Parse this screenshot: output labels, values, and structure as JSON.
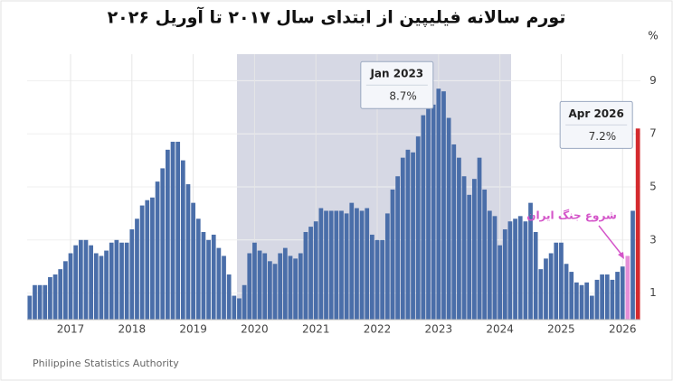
{
  "chart_data": {
    "type": "bar",
    "title": "تورم سالانه فیلیپین از ابتدای سال ۲۰۱۷ تا آوریل ۲۰۲۶",
    "y_label": "%",
    "source": "Philippine Statistics Authority",
    "annotation": "شروع جنگ ایران",
    "color": "#4a6ea9",
    "categories": [
      null,
      null,
      null,
      null,
      null,
      null,
      null,
      null,
      "2017",
      null,
      null,
      null,
      null,
      null,
      null,
      null,
      null,
      null,
      null,
      null,
      "2018",
      null,
      null,
      null,
      null,
      null,
      null,
      null,
      null,
      null,
      null,
      null,
      "2019",
      null,
      null,
      null,
      null,
      null,
      null,
      null,
      null,
      null,
      null,
      null,
      "2020",
      null,
      null,
      null,
      null,
      null,
      null,
      null,
      null,
      null,
      null,
      null,
      "2021",
      null,
      null,
      null,
      null,
      null,
      null,
      null,
      null,
      null,
      null,
      null,
      "2022",
      null,
      null,
      null,
      null,
      null,
      null,
      null,
      null,
      null,
      null,
      null,
      "2023",
      null,
      null,
      null,
      null,
      null,
      null,
      null,
      null,
      null,
      null,
      null,
      "2024",
      null,
      null,
      null,
      null,
      null,
      null,
      null,
      null,
      null,
      null,
      null,
      "2025",
      null,
      null,
      null,
      null,
      null,
      null,
      null,
      null,
      null,
      null,
      null,
      "2026",
      null,
      null,
      null
    ],
    "values": [
      0.9,
      1.3,
      1.3,
      1.3,
      1.6,
      1.7,
      1.9,
      2.2,
      2.5,
      2.8,
      3.0,
      3.0,
      2.8,
      2.5,
      2.4,
      2.6,
      2.9,
      3.0,
      2.9,
      2.9,
      3.4,
      3.8,
      4.3,
      4.5,
      4.6,
      5.2,
      5.7,
      6.4,
      6.7,
      6.7,
      6.0,
      5.1,
      4.4,
      3.8,
      3.3,
      3.0,
      3.2,
      2.7,
      2.4,
      1.7,
      0.9,
      0.8,
      1.3,
      2.5,
      2.9,
      2.6,
      2.5,
      2.2,
      2.1,
      2.5,
      2.7,
      2.4,
      2.3,
      2.5,
      3.3,
      3.5,
      3.7,
      4.2,
      4.1,
      4.1,
      4.1,
      4.1,
      4.0,
      4.4,
      4.2,
      4.1,
      4.2,
      3.2,
      3.0,
      3.0,
      4.0,
      4.9,
      5.4,
      6.1,
      6.4,
      6.3,
      6.9,
      7.7,
      8.0,
      8.1,
      8.7,
      8.6,
      7.6,
      6.6,
      6.1,
      5.4,
      4.7,
      5.3,
      6.1,
      4.9,
      4.1,
      3.9,
      2.8,
      3.4,
      3.7,
      3.8,
      3.9,
      3.7,
      4.4,
      3.3,
      1.9,
      2.3,
      2.5,
      2.9,
      2.9,
      2.1,
      1.8,
      1.4,
      1.3,
      1.4,
      0.9,
      1.5,
      1.7,
      1.7,
      1.5,
      1.8,
      2.0,
      2.4,
      4.1,
      7.2
    ],
    "value_labels": [
      null,
      null,
      null,
      null,
      null,
      null,
      null,
      null,
      null,
      null,
      null,
      null,
      null,
      null,
      null,
      null,
      null,
      null,
      null,
      null,
      null,
      null,
      null,
      null,
      null,
      null,
      null,
      null,
      null,
      null,
      null,
      null,
      null,
      null,
      null,
      null,
      null,
      null,
      null,
      null,
      null,
      null,
      null,
      null,
      null,
      null,
      null,
      null,
      null,
      null,
      null,
      null,
      null,
      null,
      null,
      null,
      null,
      null,
      null,
      null,
      null,
      null,
      null,
      null,
      null,
      null,
      null,
      null,
      null,
      null,
      null,
      null,
      null,
      null,
      null,
      null,
      null,
      null,
      null,
      null,
      "8.7%",
      null,
      null,
      null,
      null,
      null,
      null,
      null,
      null,
      null,
      null,
      null,
      null,
      null,
      null,
      null,
      null,
      null,
      null,
      null,
      null,
      null,
      null,
      null,
      null,
      null,
      null,
      null,
      null,
      null,
      null,
      null,
      null,
      null,
      null,
      null,
      null,
      null,
      null,
      "7.2%"
    ],
    "value_label_titles": [
      null,
      null,
      null,
      null,
      null,
      null,
      null,
      null,
      null,
      null,
      null,
      null,
      null,
      null,
      null,
      null,
      null,
      null,
      null,
      null,
      null,
      null,
      null,
      null,
      null,
      null,
      null,
      null,
      null,
      null,
      null,
      null,
      null,
      null,
      null,
      null,
      null,
      null,
      null,
      null,
      null,
      null,
      null,
      null,
      null,
      null,
      null,
      null,
      null,
      null,
      null,
      null,
      null,
      null,
      null,
      null,
      null,
      null,
      null,
      null,
      null,
      null,
      null,
      null,
      null,
      null,
      null,
      null,
      null,
      null,
      null,
      null,
      null,
      null,
      null,
      null,
      null,
      null,
      null,
      null,
      "Jan 2023",
      null,
      null,
      null,
      null,
      null,
      null,
      null,
      null,
      null,
      null,
      null,
      null,
      null,
      null,
      null,
      null,
      null,
      null,
      null,
      null,
      null,
      null,
      null,
      null,
      null,
      null,
      null,
      null,
      null,
      null,
      null,
      null,
      null,
      null,
      null,
      null,
      null,
      null,
      "Apr 2026"
    ],
    "colors": [
      null,
      null,
      null,
      null,
      null,
      null,
      null,
      null,
      null,
      null,
      null,
      null,
      null,
      null,
      null,
      null,
      null,
      null,
      null,
      null,
      null,
      null,
      null,
      null,
      null,
      null,
      null,
      null,
      null,
      null,
      null,
      null,
      null,
      null,
      null,
      null,
      null,
      null,
      null,
      null,
      null,
      null,
      null,
      null,
      null,
      null,
      null,
      null,
      null,
      null,
      null,
      null,
      null,
      null,
      null,
      null,
      null,
      null,
      null,
      null,
      null,
      null,
      null,
      null,
      null,
      null,
      null,
      null,
      null,
      null,
      null,
      null,
      null,
      null,
      null,
      null,
      null,
      null,
      null,
      null,
      null,
      null,
      null,
      null,
      null,
      null,
      null,
      null,
      null,
      null,
      null,
      null,
      null,
      null,
      null,
      null,
      null,
      null,
      null,
      null,
      null,
      null,
      null,
      null,
      null,
      null,
      null,
      null,
      null,
      null,
      null,
      null,
      null,
      null,
      null,
      null,
      null,
      "#e58fd8",
      null,
      "#d42a2e"
    ],
    "ylim": [
      0,
      10
    ],
    "yticks": [
      1,
      3,
      5,
      7,
      9
    ],
    "grid": true
  }
}
